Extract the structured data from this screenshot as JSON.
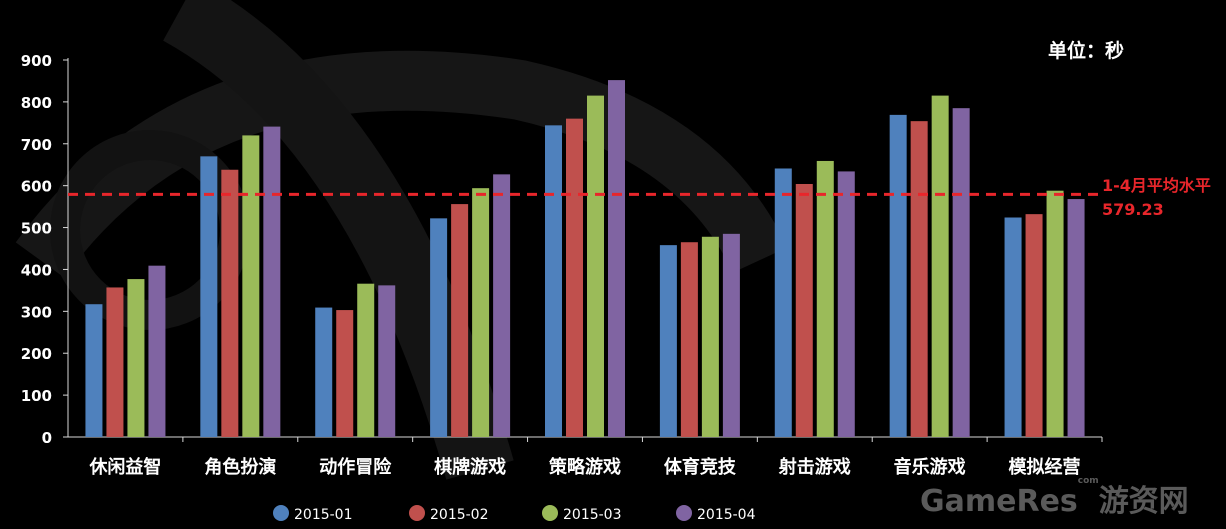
{
  "unit_label": "单位：秒",
  "average_line": {
    "label": "1-4月平均水平",
    "value_text": "579.23",
    "value": 579.23,
    "color": "#e8262b"
  },
  "watermark": {
    "brand": "GameRes",
    "suffix": "com",
    "site": "游资网"
  },
  "chart_data": {
    "type": "bar",
    "title": "",
    "xlabel": "",
    "ylabel": "",
    "ylim": [
      0,
      900
    ],
    "yticks": [
      0,
      100,
      200,
      300,
      400,
      500,
      600,
      700,
      800,
      900
    ],
    "grid": false,
    "legend_position": "bottom",
    "categories": [
      "休闲益智",
      "角色扮演",
      "动作冒险",
      "棋牌游戏",
      "策略游戏",
      "体育竞技",
      "射击游戏",
      "音乐游戏",
      "模拟经营"
    ],
    "series": [
      {
        "name": "2015-01",
        "color": "#4f81bd",
        "values": [
          317,
          670,
          309,
          522,
          744,
          458,
          641,
          769,
          524
        ]
      },
      {
        "name": "2015-02",
        "color": "#c0504d",
        "values": [
          357,
          638,
          303,
          556,
          760,
          465,
          604,
          754,
          532
        ]
      },
      {
        "name": "2015-03",
        "color": "#9bbb59",
        "values": [
          377,
          720,
          366,
          594,
          815,
          478,
          659,
          815,
          588
        ]
      },
      {
        "name": "2015-04",
        "color": "#8064a2",
        "values": [
          409,
          741,
          362,
          627,
          852,
          485,
          634,
          785,
          568
        ]
      }
    ]
  }
}
